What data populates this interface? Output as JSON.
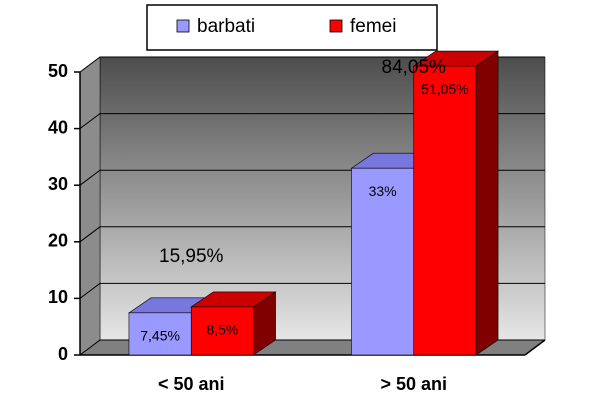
{
  "chart_data": {
    "type": "bar3d",
    "categories": [
      "< 50 ani",
      "> 50 ani"
    ],
    "series": [
      {
        "name": "barbati",
        "color": "#9999ff",
        "values": [
          7.45,
          33
        ],
        "value_labels": [
          "7,45%",
          "33%"
        ]
      },
      {
        "name": "femei",
        "color": "#ff0000",
        "values": [
          8.5,
          51.05
        ],
        "value_labels": [
          "8,5%",
          "51,05%"
        ]
      }
    ],
    "annotations": [
      "15,95%",
      "84,05%"
    ],
    "ylim": [
      0,
      50
    ],
    "yticks": [
      0,
      10,
      20,
      30,
      40,
      50
    ],
    "grid": true,
    "legend": "top"
  }
}
